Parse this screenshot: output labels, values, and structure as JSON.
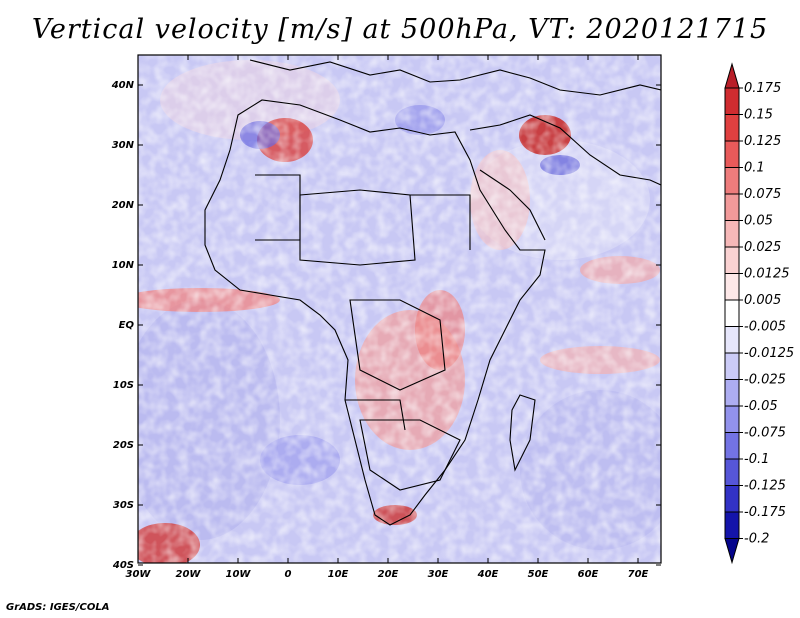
{
  "title": "Vertical velocity [m/s] at 500hPa, VT: 2020121715",
  "footer": "GrADS: IGES/COLA",
  "map": {
    "region": "Africa",
    "lon_labels": [
      "30W",
      "20W",
      "10W",
      "0",
      "10E",
      "20E",
      "30E",
      "40E",
      "50E",
      "60E",
      "70E"
    ],
    "lat_labels": [
      "40N",
      "30N",
      "20N",
      "10N",
      "EQ",
      "10S",
      "20S",
      "30S",
      "40S"
    ]
  },
  "colorbar": {
    "levels": [
      "0.175",
      "0.15",
      "0.125",
      "0.1",
      "0.075",
      "0.05",
      "0.025",
      "0.0125",
      "0.005",
      "-0.005",
      "-0.0125",
      "-0.025",
      "-0.05",
      "-0.075",
      "-0.1",
      "-0.125",
      "-0.175",
      "-0.2"
    ],
    "colors": [
      "#b81e28",
      "#d02c30",
      "#e04040",
      "#e85a5a",
      "#ee7c7c",
      "#f29a9a",
      "#f6b8b8",
      "#fad2d2",
      "#fde8e8",
      "#ffffff",
      "#e6e6fb",
      "#cbcbf7",
      "#adadf1",
      "#9292ec",
      "#7373e4",
      "#5656d8",
      "#3232c6",
      "#1414aa",
      "#05058c"
    ]
  }
}
